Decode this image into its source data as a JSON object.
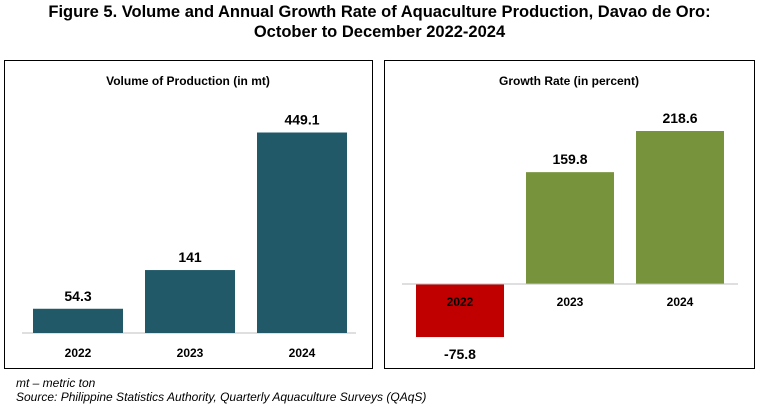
{
  "title_line1": "Figure 5. Volume and Annual Growth Rate of Aquaculture Production, Davao de Oro:",
  "title_line2": "October to December 2022-2024",
  "footnote": "mt – metric ton",
  "source": "Source: Philippine Statistics Authority, Quarterly Aquaculture Surveys (QAqS)",
  "chart_data": [
    {
      "type": "bar",
      "title": "Volume of Production (in mt)",
      "categories": [
        "2022",
        "2023",
        "2024"
      ],
      "values": [
        54.3,
        141,
        449.1
      ],
      "value_labels": [
        "54.3",
        "141",
        "449.1"
      ],
      "ylim": [
        0,
        470
      ],
      "grid": false,
      "color": "#215968"
    },
    {
      "type": "bar",
      "title": "Growth Rate (in percent)",
      "categories": [
        "2022",
        "2023",
        "2024"
      ],
      "values": [
        -75.8,
        159.8,
        218.6
      ],
      "value_labels": [
        "-75.8",
        "159.8",
        "218.6"
      ],
      "ylim": [
        -90,
        240
      ],
      "grid": false,
      "colors": [
        "#C00000",
        "#77933C",
        "#77933C"
      ]
    }
  ]
}
